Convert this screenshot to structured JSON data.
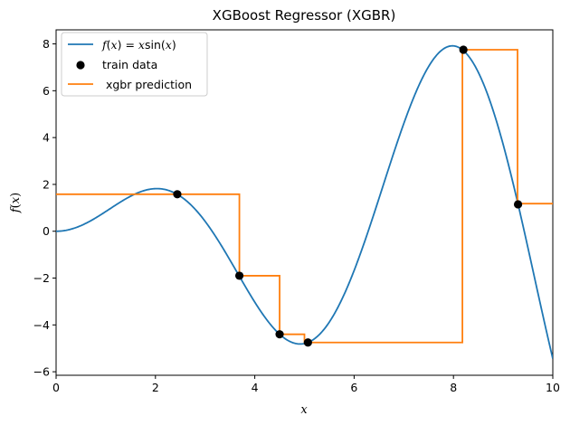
{
  "chart_data": {
    "type": "line",
    "title": "XGBoost Regressor (XGBR)",
    "xlabel": "x",
    "ylabel": "f(x)",
    "xlim": [
      0,
      10
    ],
    "ylim": [
      -6.15,
      8.6
    ],
    "xticks": [
      0,
      2,
      4,
      6,
      8,
      10
    ],
    "yticks": [
      -6,
      -4,
      -2,
      0,
      2,
      4,
      6,
      8
    ],
    "xtick_labels": [
      "0",
      "2",
      "4",
      "6",
      "8",
      "10"
    ],
    "ytick_labels": [
      "−6",
      "−4",
      "−2",
      "0",
      "2",
      "4",
      "6",
      "8"
    ],
    "grid": false,
    "legend_position": "top-left",
    "series": [
      {
        "name": "f(x) = x sin(x)",
        "kind": "line",
        "color": "#1f77b4",
        "function": "x*sin(x)",
        "x_range": [
          0,
          10
        ]
      },
      {
        "name": "train data",
        "kind": "scatter",
        "color": "#000000",
        "x": [
          2.44,
          3.69,
          4.5,
          5.07,
          8.2,
          9.3
        ],
        "y": [
          1.58,
          -1.9,
          -4.4,
          -4.75,
          7.75,
          1.15
        ]
      },
      {
        "name": " xgbr prediction",
        "kind": "step",
        "color": "#ff7f0e",
        "x": [
          0,
          3.69,
          3.69,
          4.5,
          4.5,
          5.0,
          5.0,
          8.18,
          8.18,
          9.29,
          9.29,
          10
        ],
        "y": [
          1.58,
          1.58,
          -1.9,
          -1.9,
          -4.4,
          -4.4,
          -4.75,
          -4.75,
          7.75,
          7.75,
          1.18,
          1.18
        ]
      }
    ],
    "legend": [
      {
        "label_math": "f(x) = x sin(x)",
        "marker": "line",
        "color": "#1f77b4"
      },
      {
        "label": "train data",
        "marker": "dot",
        "color": "#000000"
      },
      {
        "label": " xgbr prediction",
        "marker": "line",
        "color": "#ff7f0e"
      }
    ]
  }
}
